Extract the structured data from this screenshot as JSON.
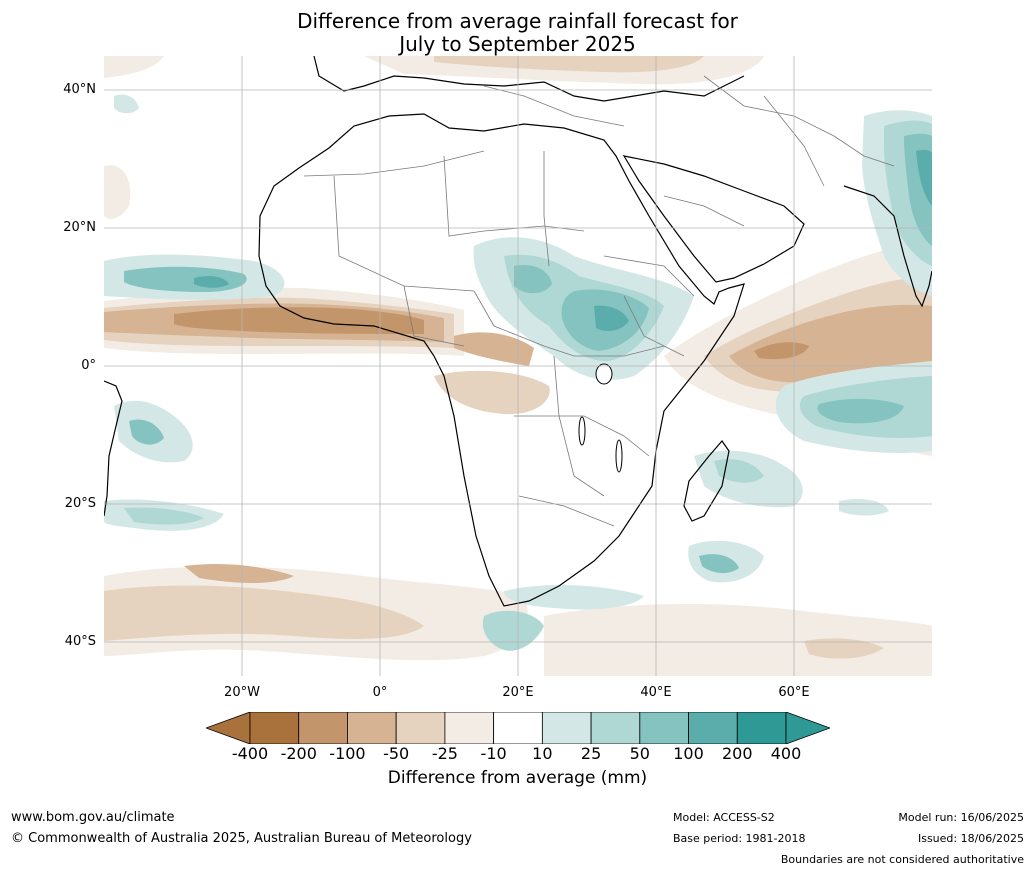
{
  "title": {
    "line1": "Difference from average rainfall forecast for",
    "line2": "July to September 2025"
  },
  "map": {
    "region": "Africa",
    "latitude_labels": [
      "40°N",
      "20°N",
      "0°",
      "20°S",
      "40°S"
    ],
    "longitude_labels": [
      "20°W",
      "0°",
      "20°E",
      "40°E",
      "60°E"
    ],
    "grid": true
  },
  "colorbar": {
    "title": "Difference from average (mm)",
    "ticks": [
      "-400",
      "-200",
      "-100",
      "-50",
      "-25",
      "-10",
      "10",
      "25",
      "50",
      "100",
      "200",
      "400"
    ],
    "colors": [
      "#a9713c",
      "#c3956b",
      "#d6b392",
      "#e6d3bf",
      "#f3ece5",
      "#ffffff",
      "#d3e8e6",
      "#afd8d5",
      "#84c3c0",
      "#5aadaa",
      "#2f9a95"
    ],
    "extend_low_color": "#a9713c",
    "extend_high_color": "#2f9a95"
  },
  "footer": {
    "website": "www.bom.gov.au/climate",
    "copyright": "© Commonwealth of Australia 2025, Australian Bureau of Meteorology",
    "model": "Model: ACCESS-S2",
    "base_period": "Base period: 1981-2018",
    "model_run": "Model run: 16/06/2025",
    "issued": "Issued: 18/06/2025",
    "disclaimer": "Boundaries are not considered authoritative"
  }
}
